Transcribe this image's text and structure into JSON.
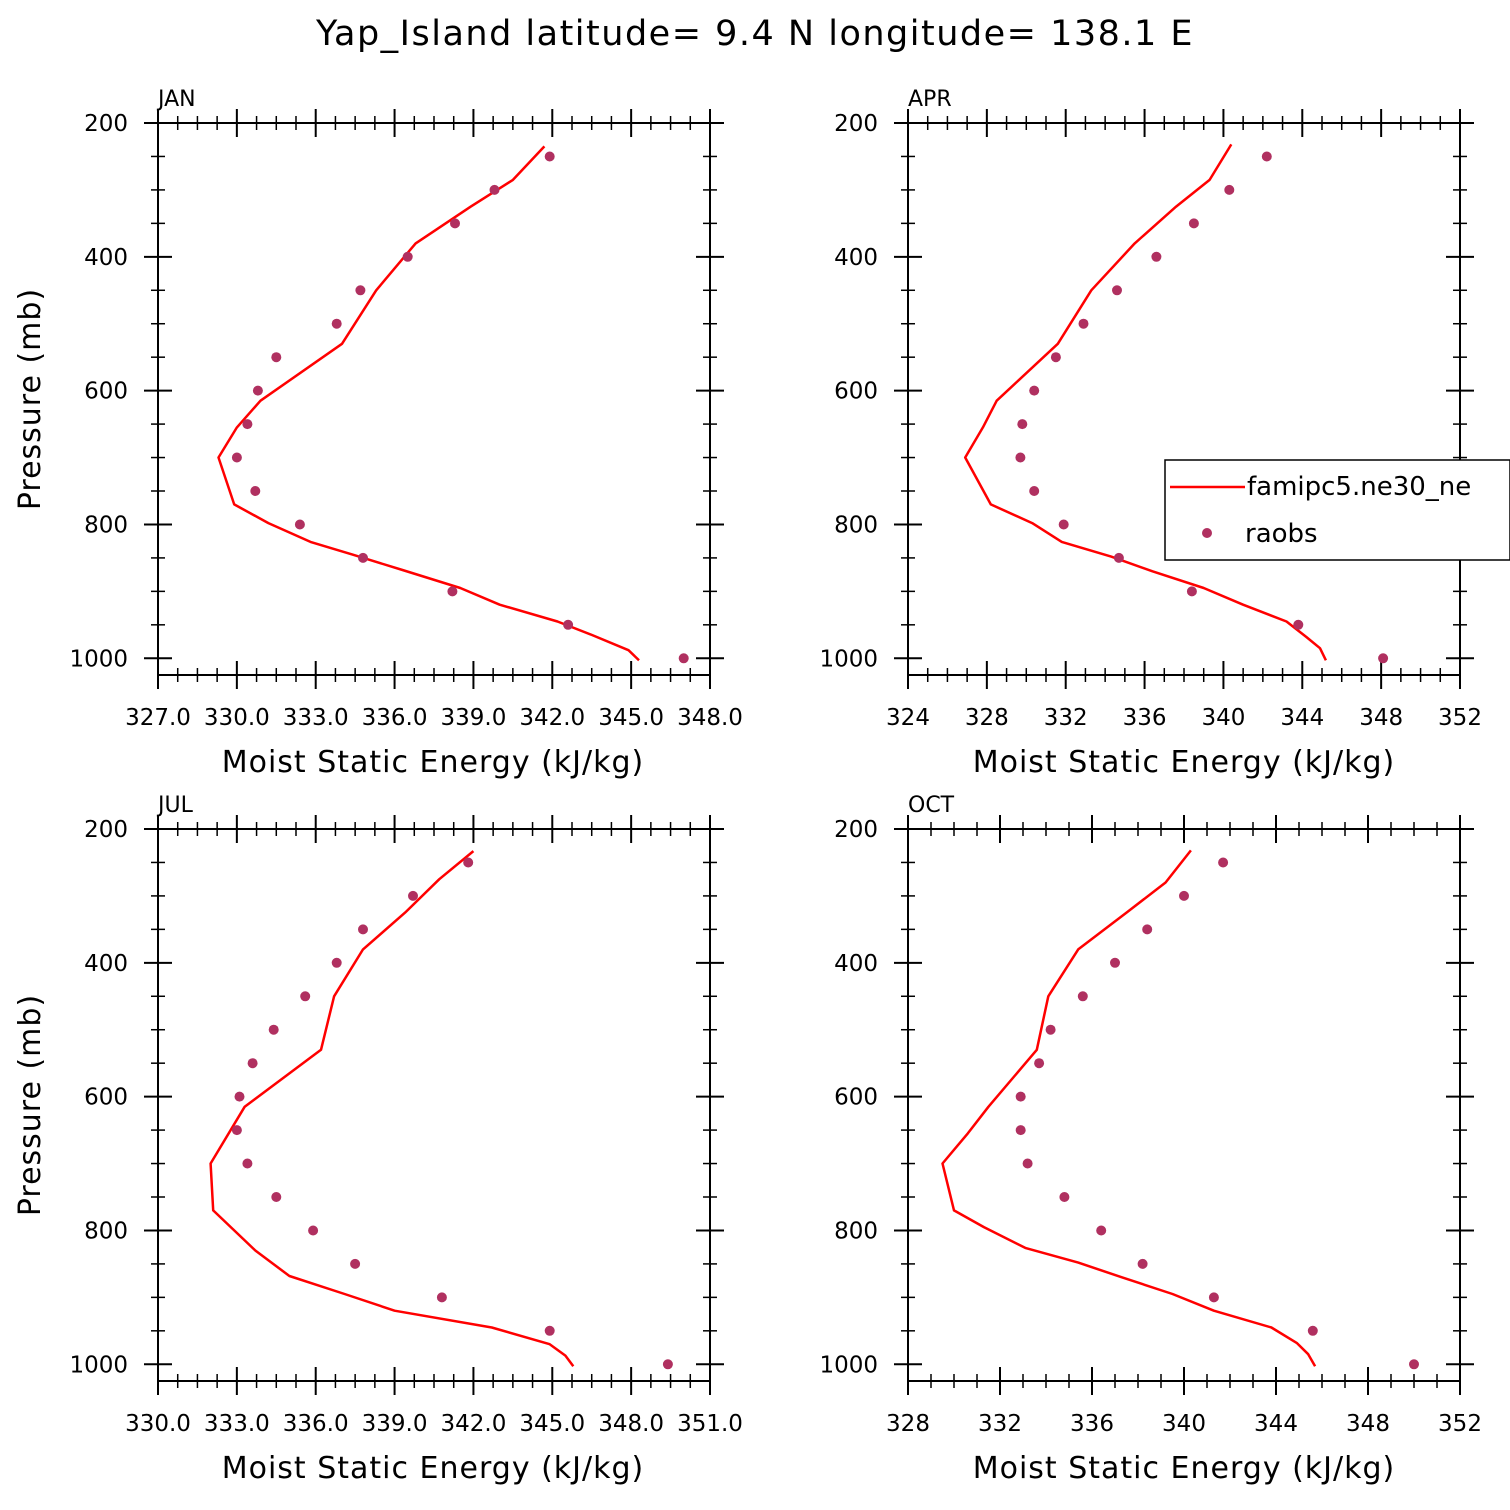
{
  "figure_title": "Yap_Island  latitude= 9.4 N longitude= 138.1 E",
  "legend": {
    "model_label": "famipc5.ne30_ne",
    "obs_label": "raobs"
  },
  "colors": {
    "model_line": "#ff0000",
    "obs_marker": "#b03060",
    "axes": "#000000"
  },
  "chart_data": [
    {
      "type": "line",
      "title": "JAN",
      "xlabel": "Moist Static Energy (kJ/kg)",
      "ylabel": "Pressure (mb)",
      "xlim": [
        327.0,
        348.0
      ],
      "ylim": [
        1025,
        200
      ],
      "y_inverted": true,
      "xticks": [
        327.0,
        330.0,
        333.0,
        336.0,
        339.0,
        342.0,
        345.0,
        348.0
      ],
      "xtick_labels": [
        "327.0",
        "330.0",
        "333.0",
        "336.0",
        "339.0",
        "342.0",
        "345.0",
        "348.0"
      ],
      "yticks": [
        200,
        400,
        600,
        800,
        1000
      ],
      "ytick_labels": [
        "200",
        "400",
        "600",
        "800",
        "1000"
      ],
      "series": [
        {
          "name": "famipc5.ne30_ne",
          "style": "line",
          "points": [
            [
              345.3,
              1003
            ],
            [
              344.9,
              988
            ],
            [
              343.5,
              965
            ],
            [
              342.2,
              945
            ],
            [
              340.0,
              920
            ],
            [
              338.5,
              895
            ],
            [
              336.3,
              868
            ],
            [
              334.4,
              845
            ],
            [
              332.8,
              826
            ],
            [
              331.2,
              798
            ],
            [
              329.9,
              770
            ],
            [
              329.3,
              700
            ],
            [
              330.0,
              655
            ],
            [
              330.9,
              615
            ],
            [
              334.0,
              530
            ],
            [
              335.3,
              450
            ],
            [
              336.8,
              380
            ],
            [
              338.9,
              325
            ],
            [
              340.5,
              285
            ],
            [
              341.7,
              235
            ]
          ],
          "values": [
            1003,
            988,
            965,
            945,
            920,
            895,
            868,
            845,
            826,
            798,
            770,
            700,
            655,
            615,
            530,
            450,
            380,
            325,
            285,
            235
          ]
        },
        {
          "name": "raobs",
          "style": "markers",
          "points": [
            [
              347.0,
              1000
            ],
            [
              342.6,
              950
            ],
            [
              338.2,
              900
            ],
            [
              334.8,
              850
            ],
            [
              332.4,
              800
            ],
            [
              330.7,
              750
            ],
            [
              330.0,
              700
            ],
            [
              330.4,
              650
            ],
            [
              330.8,
              600
            ],
            [
              331.5,
              550
            ],
            [
              333.8,
              500
            ],
            [
              334.7,
              450
            ],
            [
              336.5,
              400
            ],
            [
              338.3,
              350
            ],
            [
              339.8,
              300
            ],
            [
              341.9,
              250
            ]
          ],
          "values": [
            1000,
            950,
            900,
            850,
            800,
            750,
            700,
            650,
            600,
            550,
            500,
            450,
            400,
            350,
            300,
            250
          ]
        }
      ]
    },
    {
      "type": "line",
      "title": "APR",
      "xlabel": "Moist Static Energy (kJ/kg)",
      "ylabel": "",
      "xlim": [
        324,
        352
      ],
      "ylim": [
        1025,
        200
      ],
      "y_inverted": true,
      "xticks": [
        324,
        328,
        332,
        336,
        340,
        344,
        348,
        352
      ],
      "xtick_labels": [
        "324",
        "328",
        "332",
        "336",
        "340",
        "344",
        "348",
        "352"
      ],
      "yticks": [
        200,
        400,
        600,
        800,
        1000
      ],
      "ytick_labels": [
        "200",
        "400",
        "600",
        "800",
        "1000"
      ],
      "series": [
        {
          "name": "famipc5.ne30_ne",
          "style": "line",
          "points": [
            [
              345.2,
              1003
            ],
            [
              344.9,
              985
            ],
            [
              344.2,
              968
            ],
            [
              343.2,
              945
            ],
            [
              341.0,
              920
            ],
            [
              339.0,
              895
            ],
            [
              336.4,
              870
            ],
            [
              334.3,
              848
            ],
            [
              331.8,
              826
            ],
            [
              330.3,
              798
            ],
            [
              328.2,
              770
            ],
            [
              326.9,
              700
            ],
            [
              327.8,
              655
            ],
            [
              328.5,
              615
            ],
            [
              331.6,
              530
            ],
            [
              333.3,
              450
            ],
            [
              335.5,
              380
            ],
            [
              337.6,
              325
            ],
            [
              339.3,
              285
            ],
            [
              340.4,
              232
            ]
          ],
          "values": [
            1003,
            985,
            968,
            945,
            920,
            895,
            870,
            848,
            826,
            798,
            770,
            700,
            655,
            615,
            530,
            450,
            380,
            325,
            285,
            232
          ]
        },
        {
          "name": "raobs",
          "style": "markers",
          "points": [
            [
              348.1,
              1000
            ],
            [
              343.8,
              950
            ],
            [
              338.4,
              900
            ],
            [
              334.7,
              850
            ],
            [
              331.9,
              800
            ],
            [
              330.4,
              750
            ],
            [
              329.7,
              700
            ],
            [
              329.8,
              650
            ],
            [
              330.4,
              600
            ],
            [
              331.5,
              550
            ],
            [
              332.9,
              500
            ],
            [
              334.6,
              450
            ],
            [
              336.6,
              400
            ],
            [
              338.5,
              350
            ],
            [
              340.3,
              300
            ],
            [
              342.2,
              250
            ]
          ],
          "values": [
            1000,
            950,
            900,
            850,
            800,
            750,
            700,
            650,
            600,
            550,
            500,
            450,
            400,
            350,
            300,
            250
          ]
        }
      ]
    },
    {
      "type": "line",
      "title": "JUL",
      "xlabel": "Moist Static Energy (kJ/kg)",
      "ylabel": "Pressure (mb)",
      "xlim": [
        330.0,
        351.0
      ],
      "ylim": [
        1025,
        200
      ],
      "y_inverted": true,
      "xticks": [
        330.0,
        333.0,
        336.0,
        339.0,
        342.0,
        345.0,
        348.0,
        351.0
      ],
      "xtick_labels": [
        "330.0",
        "333.0",
        "336.0",
        "339.0",
        "342.0",
        "345.0",
        "348.0",
        "351.0"
      ],
      "yticks": [
        200,
        400,
        600,
        800,
        1000
      ],
      "ytick_labels": [
        "200",
        "400",
        "600",
        "800",
        "1000"
      ],
      "series": [
        {
          "name": "famipc5.ne30_ne",
          "style": "line",
          "points": [
            [
              345.8,
              1003
            ],
            [
              345.5,
              987
            ],
            [
              344.9,
              970
            ],
            [
              342.7,
              945
            ],
            [
              339.0,
              920
            ],
            [
              337.1,
              895
            ],
            [
              335.0,
              868
            ],
            [
              333.7,
              830
            ],
            [
              332.1,
              770
            ],
            [
              332.0,
              700
            ],
            [
              333.3,
              615
            ],
            [
              336.2,
              530
            ],
            [
              336.7,
              450
            ],
            [
              337.8,
              380
            ],
            [
              339.4,
              325
            ],
            [
              340.7,
              275
            ],
            [
              342.0,
              233
            ]
          ],
          "values": [
            1003,
            987,
            970,
            945,
            920,
            895,
            868,
            830,
            770,
            700,
            615,
            530,
            450,
            380,
            325,
            275,
            233
          ]
        },
        {
          "name": "raobs",
          "style": "markers",
          "points": [
            [
              349.4,
              1000
            ],
            [
              344.9,
              950
            ],
            [
              340.8,
              900
            ],
            [
              337.5,
              850
            ],
            [
              335.9,
              800
            ],
            [
              334.5,
              750
            ],
            [
              333.4,
              700
            ],
            [
              333.0,
              650
            ],
            [
              333.1,
              600
            ],
            [
              333.6,
              550
            ],
            [
              334.4,
              500
            ],
            [
              335.6,
              450
            ],
            [
              336.8,
              400
            ],
            [
              337.8,
              350
            ],
            [
              339.7,
              300
            ],
            [
              341.8,
              250
            ]
          ],
          "values": [
            1000,
            950,
            900,
            850,
            800,
            750,
            700,
            650,
            600,
            550,
            500,
            450,
            400,
            350,
            300,
            250
          ]
        }
      ]
    },
    {
      "type": "line",
      "title": "OCT",
      "xlabel": "Moist Static Energy (kJ/kg)",
      "ylabel": "",
      "xlim": [
        328,
        352
      ],
      "ylim": [
        1025,
        200
      ],
      "y_inverted": true,
      "xticks": [
        328,
        332,
        336,
        340,
        344,
        348,
        352
      ],
      "xtick_labels": [
        "328",
        "332",
        "336",
        "340",
        "344",
        "348",
        "352"
      ],
      "yticks": [
        200,
        400,
        600,
        800,
        1000
      ],
      "ytick_labels": [
        "200",
        "400",
        "600",
        "800",
        "1000"
      ],
      "series": [
        {
          "name": "famipc5.ne30_ne",
          "style": "line",
          "points": [
            [
              345.7,
              1003
            ],
            [
              345.4,
              985
            ],
            [
              344.9,
              968
            ],
            [
              343.8,
              945
            ],
            [
              341.3,
              920
            ],
            [
              339.5,
              895
            ],
            [
              337.3,
              870
            ],
            [
              335.4,
              848
            ],
            [
              333.1,
              826
            ],
            [
              331.3,
              795
            ],
            [
              330.0,
              770
            ],
            [
              329.5,
              700
            ],
            [
              330.6,
              655
            ],
            [
              331.5,
              615
            ],
            [
              333.6,
              530
            ],
            [
              334.1,
              450
            ],
            [
              335.4,
              380
            ],
            [
              337.5,
              325
            ],
            [
              339.2,
              280
            ],
            [
              340.3,
              232
            ]
          ],
          "values": [
            1003,
            985,
            968,
            945,
            920,
            895,
            870,
            848,
            826,
            795,
            770,
            700,
            655,
            615,
            530,
            450,
            380,
            325,
            280,
            232
          ]
        },
        {
          "name": "raobs",
          "style": "markers",
          "points": [
            [
              350.0,
              1000
            ],
            [
              345.6,
              950
            ],
            [
              341.3,
              900
            ],
            [
              338.2,
              850
            ],
            [
              336.4,
              800
            ],
            [
              334.8,
              750
            ],
            [
              333.2,
              700
            ],
            [
              332.9,
              650
            ],
            [
              332.9,
              600
            ],
            [
              333.7,
              550
            ],
            [
              334.2,
              500
            ],
            [
              335.6,
              450
            ],
            [
              337.0,
              400
            ],
            [
              338.4,
              350
            ],
            [
              340.0,
              300
            ],
            [
              341.7,
              250
            ]
          ],
          "values": [
            1000,
            950,
            900,
            850,
            800,
            750,
            700,
            650,
            600,
            550,
            500,
            450,
            400,
            350,
            300,
            250
          ]
        }
      ]
    }
  ]
}
